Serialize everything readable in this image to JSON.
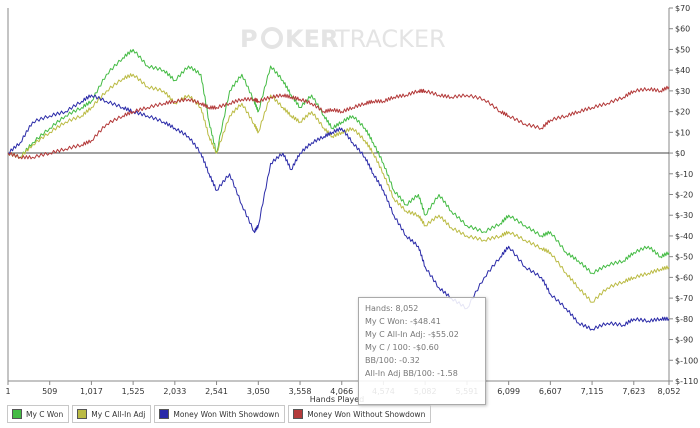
{
  "watermark": {
    "part1": "P",
    "part2": "KER",
    "part3": "TRACKER"
  },
  "tooltip": {
    "lines": [
      "Hands: 8,052",
      "My C Won: -$48.41",
      "My C All-In Adj: -$55.02",
      "My C / 100: -$0.60",
      "BB/100: -0.32",
      "All-In Adj BB/100: -1.58"
    ]
  },
  "legend": [
    {
      "label": "My C Won",
      "color": "#44bb44"
    },
    {
      "label": "My C All-In Adj",
      "color": "#bbbb44"
    },
    {
      "label": "Money Won With Showdown",
      "color": "#2a2aa8"
    },
    {
      "label": "Money Won Without Showdown",
      "color": "#b33a3a"
    }
  ],
  "chart_data": {
    "type": "line",
    "xlabel": "Hands Played",
    "ylabel": "",
    "xlim": [
      1,
      8052
    ],
    "ylim": [
      -110,
      70
    ],
    "x_ticks": [
      "1",
      "509",
      "1,017",
      "1,525",
      "2,033",
      "2,541",
      "3,050",
      "3,558",
      "4,066",
      "4,574",
      "5,082",
      "5,591",
      "6,099",
      "6,607",
      "7,115",
      "7,623",
      "8,052"
    ],
    "y_ticks": [
      "$70",
      "$60",
      "$50",
      "$40",
      "$30",
      "$20",
      "$10",
      "$0",
      "$-10",
      "$-20",
      "$-30",
      "$-40",
      "$-50",
      "$-60",
      "$-70",
      "$-80",
      "$-90",
      "$-100",
      "$-110"
    ],
    "grid": false,
    "series": [
      {
        "name": "My C Won",
        "color": "#44bb44",
        "x": [
          1,
          150,
          300,
          509,
          700,
          900,
          1017,
          1200,
          1400,
          1525,
          1700,
          1900,
          2033,
          2200,
          2350,
          2450,
          2541,
          2700,
          2850,
          3000,
          3050,
          3200,
          3350,
          3450,
          3558,
          3700,
          3850,
          3950,
          4066,
          4200,
          4350,
          4450,
          4574,
          4700,
          4850,
          5000,
          5082,
          5250,
          5400,
          5591,
          5800,
          6000,
          6099,
          6300,
          6500,
          6607,
          6800,
          6950,
          7115,
          7300,
          7500,
          7623,
          7800,
          7950,
          8052
        ],
        "y": [
          0,
          -2,
          5,
          12,
          18,
          22,
          25,
          38,
          46,
          50,
          42,
          40,
          35,
          42,
          38,
          15,
          0,
          30,
          38,
          25,
          20,
          42,
          35,
          28,
          22,
          28,
          18,
          12,
          15,
          18,
          12,
          5,
          -5,
          -18,
          -25,
          -20,
          -30,
          -20,
          -28,
          -35,
          -38,
          -34,
          -30,
          -35,
          -40,
          -38,
          -48,
          -52,
          -58,
          -54,
          -52,
          -48,
          -45,
          -50,
          -48
        ]
      },
      {
        "name": "My C All-In Adj",
        "color": "#bbbb44",
        "x": [
          1,
          150,
          300,
          509,
          700,
          900,
          1017,
          1200,
          1400,
          1525,
          1700,
          1900,
          2033,
          2200,
          2350,
          2450,
          2541,
          2700,
          2850,
          3000,
          3050,
          3200,
          3350,
          3450,
          3558,
          3700,
          3850,
          3950,
          4066,
          4200,
          4350,
          4450,
          4574,
          4700,
          4850,
          5000,
          5082,
          5250,
          5400,
          5591,
          5800,
          6000,
          6099,
          6300,
          6500,
          6607,
          6800,
          6950,
          7115,
          7300,
          7500,
          7623,
          7800,
          7950,
          8052
        ],
        "y": [
          0,
          -2,
          4,
          10,
          15,
          18,
          22,
          30,
          36,
          38,
          32,
          30,
          24,
          28,
          22,
          8,
          0,
          18,
          24,
          14,
          10,
          28,
          22,
          18,
          15,
          20,
          12,
          8,
          10,
          12,
          6,
          0,
          -10,
          -22,
          -28,
          -30,
          -35,
          -30,
          -36,
          -40,
          -42,
          -40,
          -38,
          -42,
          -46,
          -48,
          -58,
          -65,
          -72,
          -65,
          -62,
          -60,
          -58,
          -56,
          -55
        ]
      },
      {
        "name": "Money Won With Showdown",
        "color": "#2a2aa8",
        "x": [
          1,
          150,
          300,
          509,
          700,
          900,
          1017,
          1200,
          1400,
          1525,
          1700,
          1900,
          2033,
          2200,
          2350,
          2450,
          2541,
          2700,
          2850,
          3000,
          3050,
          3200,
          3350,
          3450,
          3558,
          3700,
          3850,
          3950,
          4066,
          4200,
          4350,
          4450,
          4574,
          4700,
          4850,
          5000,
          5082,
          5250,
          5400,
          5591,
          5800,
          6000,
          6099,
          6300,
          6500,
          6607,
          6800,
          6950,
          7115,
          7300,
          7500,
          7623,
          7800,
          7950,
          8052
        ],
        "y": [
          0,
          5,
          15,
          18,
          20,
          25,
          28,
          25,
          22,
          20,
          18,
          15,
          12,
          8,
          0,
          -10,
          -18,
          -10,
          -25,
          -38,
          -35,
          -5,
          0,
          -8,
          0,
          5,
          8,
          10,
          12,
          5,
          -2,
          -10,
          -18,
          -30,
          -40,
          -45,
          -55,
          -65,
          -70,
          -75,
          -60,
          -50,
          -45,
          -55,
          -60,
          -68,
          -75,
          -82,
          -85,
          -82,
          -83,
          -80,
          -81,
          -80,
          -80
        ]
      },
      {
        "name": "Money Won Without Showdown",
        "color": "#b33a3a",
        "x": [
          1,
          150,
          300,
          509,
          700,
          900,
          1017,
          1200,
          1400,
          1525,
          1700,
          1900,
          2033,
          2200,
          2350,
          2450,
          2541,
          2700,
          2850,
          3000,
          3050,
          3200,
          3350,
          3450,
          3558,
          3700,
          3850,
          3950,
          4066,
          4200,
          4350,
          4450,
          4574,
          4700,
          4850,
          5000,
          5082,
          5250,
          5400,
          5591,
          5800,
          6000,
          6099,
          6300,
          6500,
          6607,
          6800,
          6950,
          7115,
          7300,
          7500,
          7623,
          7800,
          7950,
          8052
        ],
        "y": [
          0,
          -2,
          -2,
          0,
          2,
          4,
          6,
          14,
          18,
          20,
          22,
          24,
          25,
          26,
          24,
          22,
          22,
          24,
          26,
          26,
          25,
          27,
          28,
          27,
          26,
          24,
          20,
          21,
          20,
          22,
          24,
          25,
          25,
          27,
          28,
          30,
          30,
          28,
          27,
          28,
          26,
          20,
          18,
          14,
          12,
          16,
          18,
          20,
          22,
          24,
          27,
          30,
          31,
          30,
          32
        ]
      }
    ]
  }
}
